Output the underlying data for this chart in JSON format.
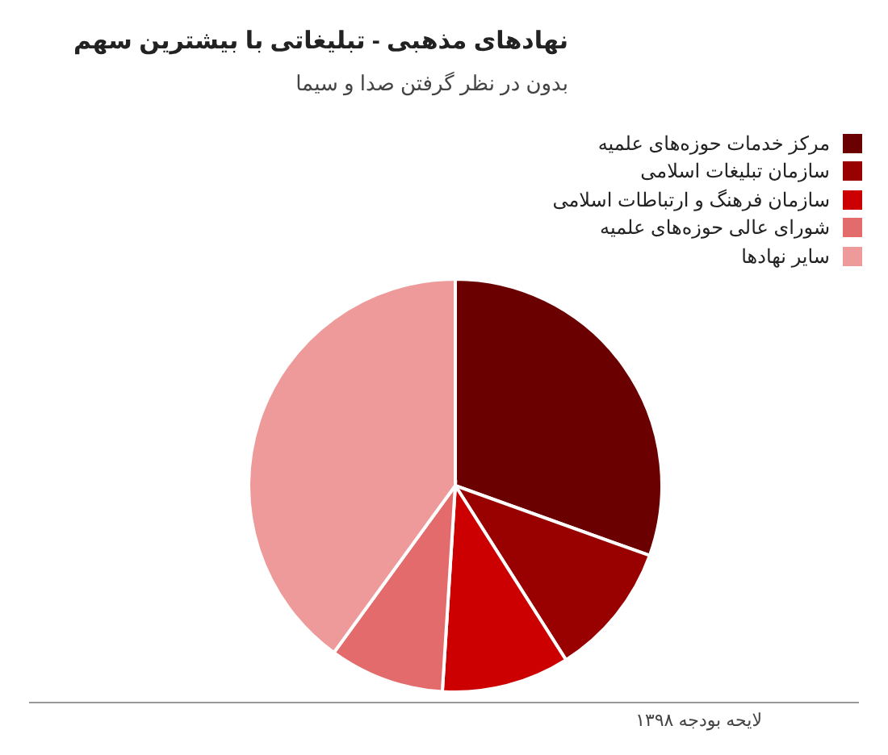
{
  "chart_data": {
    "type": "pie",
    "title": "نهادهای مذهبی - تبلیغاتی با بیشترین سهم",
    "subtitle": "بدون در نظر گرفتن صدا و سیما",
    "categories": [
      "مرکز خدمات حوزه‌های علمیه",
      "سازمان تبلیغات اسلامی",
      "سازمان فرهنگ و ارتباطات اسلامی",
      "شورای عالی حوزه‌های علمیه",
      "سایر نهادها"
    ],
    "values": [
      30.5,
      10.5,
      10,
      9,
      40
    ],
    "colors": [
      "#6b0000",
      "#990000",
      "#cc0000",
      "#e36b6b",
      "#ee9a9a"
    ],
    "legend": "top right",
    "annotations": [
      "لایحه بودجه ۱۳۹۸"
    ]
  }
}
